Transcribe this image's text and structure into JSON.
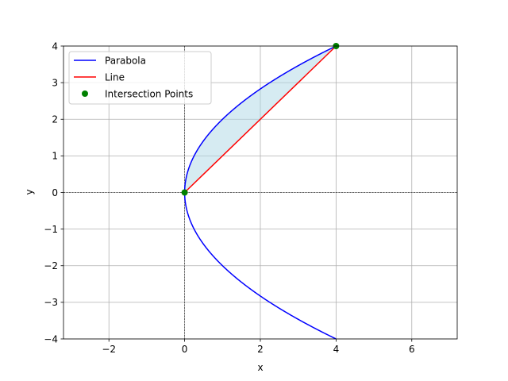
{
  "chart_data": {
    "type": "line",
    "title": "",
    "xlabel": "x",
    "ylabel": "y",
    "xlim": [
      -3.2,
      7.2
    ],
    "ylim": [
      -4,
      4
    ],
    "xticks": [
      -2,
      0,
      2,
      4,
      6
    ],
    "yticks": [
      -4,
      -3,
      -2,
      -1,
      0,
      1,
      2,
      3,
      4
    ],
    "xtick_labels": [
      "−2",
      "0",
      "2",
      "4",
      "6"
    ],
    "ytick_labels": [
      "−4",
      "−3",
      "−2",
      "−1",
      "0",
      "1",
      "2",
      "3",
      "4"
    ],
    "grid": true,
    "legend_position": "top-left",
    "series": [
      {
        "name": "Parabola",
        "kind": "line",
        "color": "#0000ff",
        "relation": "x = y^2/4",
        "y_range": [
          -4,
          4
        ]
      },
      {
        "name": "Line",
        "kind": "line",
        "color": "#ff0000",
        "x": [
          0,
          4
        ],
        "y": [
          0,
          4
        ]
      },
      {
        "name": "Intersection Points",
        "kind": "scatter",
        "color": "#008000",
        "x": [
          0,
          4
        ],
        "y": [
          0,
          4
        ]
      }
    ],
    "shaded_region": {
      "color": "#add8e6",
      "between": [
        "Parabola",
        "Line"
      ],
      "y_range": [
        0,
        4
      ]
    }
  }
}
